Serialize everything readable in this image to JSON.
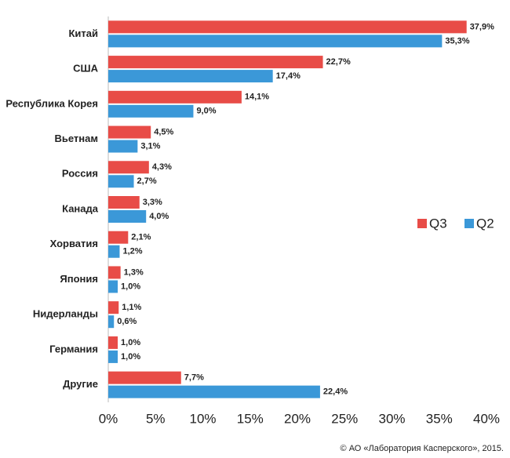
{
  "chart_data": {
    "type": "hbar",
    "categories": [
      "Китай",
      "США",
      "Республика Корея",
      "Вьетнам",
      "Россия",
      "Канада",
      "Хорватия",
      "Япония",
      "Нидерланды",
      "Германия",
      "Другие"
    ],
    "series": [
      {
        "name": "Q3",
        "color": "#e84c47",
        "values": [
          37.9,
          22.7,
          14.1,
          4.5,
          4.3,
          3.3,
          2.1,
          1.3,
          1.1,
          1.0,
          7.7
        ],
        "value_labels": [
          "37,9%",
          "22,7%",
          "14,1%",
          "4,5%",
          "4,3%",
          "3,3%",
          "2,1%",
          "1,3%",
          "1,1%",
          "1,0%",
          "7,7%"
        ]
      },
      {
        "name": "Q2",
        "color": "#3b98d8",
        "values": [
          35.3,
          17.4,
          9.0,
          3.1,
          2.7,
          4.0,
          1.2,
          1.0,
          0.6,
          1.0,
          22.4
        ],
        "value_labels": [
          "35,3%",
          "17,4%",
          "9,0%",
          "3,1%",
          "2,7%",
          "4,0%",
          "1,2%",
          "1,0%",
          "0,6%",
          "1,0%",
          "22,4%"
        ]
      }
    ],
    "xlim": [
      0,
      40
    ],
    "xticks": [
      {
        "value": 0,
        "label": "0%"
      },
      {
        "value": 5,
        "label": "5%"
      },
      {
        "value": 10,
        "label": "10%"
      },
      {
        "value": 15,
        "label": "15%"
      },
      {
        "value": 20,
        "label": "20%"
      },
      {
        "value": 25,
        "label": "25%"
      },
      {
        "value": 30,
        "label": "30%"
      },
      {
        "value": 35,
        "label": "35%"
      },
      {
        "value": 40,
        "label": "40%"
      }
    ],
    "grid": false,
    "legend": "right",
    "source": "© АО «Лаборатория Касперского», 2015."
  }
}
